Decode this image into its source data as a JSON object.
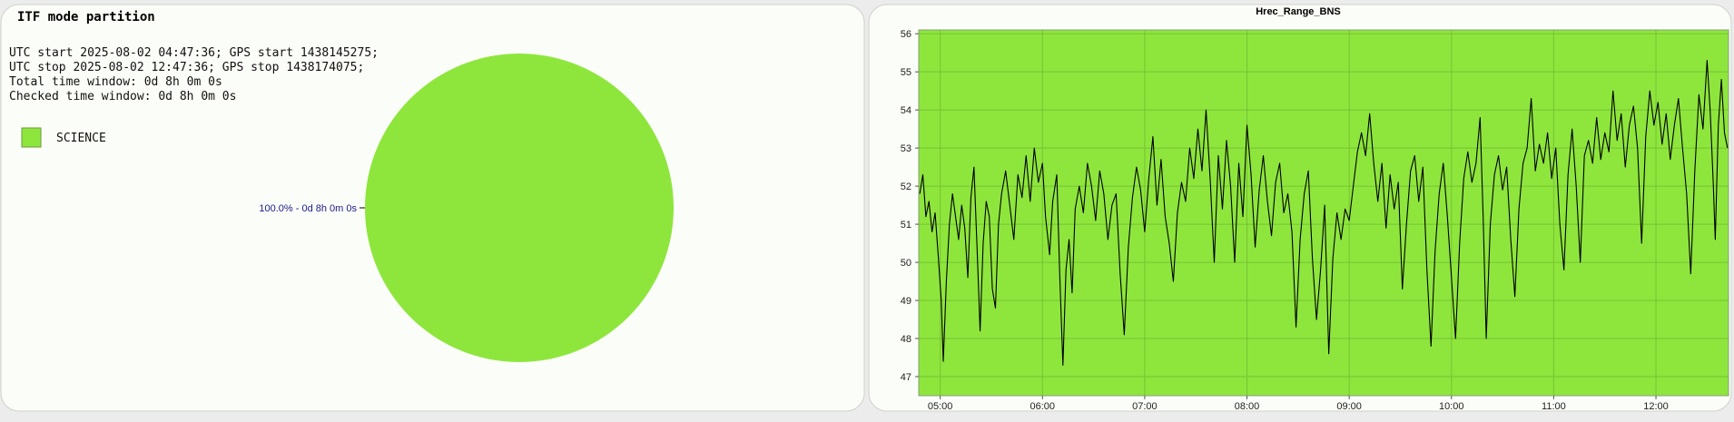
{
  "chart_data": [
    {
      "type": "pie",
      "title": "ITF mode partition",
      "annotations": [
        "UTC start 2025-08-02 04:47:36; GPS start 1438145275;",
        "UTC stop 2025-08-02 12:47:36; GPS stop 1438174075;",
        "Total time window: 0d 8h 0m 0s",
        "Checked time window: 0d 8h 0m 0s"
      ],
      "categories": [
        "SCIENCE"
      ],
      "values": [
        100
      ],
      "value_labels": [
        "100.0% - 0d 8h 0m 0s"
      ],
      "colors": [
        "#8ee63d"
      ]
    },
    {
      "type": "line",
      "title": "Hrec_Range_BNS",
      "color": "#000000",
      "background": "#8ee63d",
      "grid": true,
      "xlim": [
        4.79,
        12.71
      ],
      "ylim": [
        46.5,
        56.1
      ],
      "xticks": [
        {
          "value": 5,
          "label": "05:00"
        },
        {
          "value": 6,
          "label": "06:00"
        },
        {
          "value": 7,
          "label": "07:00"
        },
        {
          "value": 8,
          "label": "08:00"
        },
        {
          "value": 9,
          "label": "09:00"
        },
        {
          "value": 10,
          "label": "10:00"
        },
        {
          "value": 11,
          "label": "11:00"
        },
        {
          "value": 12,
          "label": "12:00"
        }
      ],
      "yticks": [
        47,
        48,
        49,
        50,
        51,
        52,
        53,
        54,
        55,
        56
      ],
      "x": [
        4.8,
        4.83,
        4.86,
        4.89,
        4.92,
        4.95,
        4.98,
        5.01,
        5.03,
        5.06,
        5.09,
        5.12,
        5.15,
        5.18,
        5.21,
        5.24,
        5.27,
        5.3,
        5.33,
        5.36,
        5.39,
        5.42,
        5.45,
        5.48,
        5.51,
        5.54,
        5.57,
        5.6,
        5.64,
        5.68,
        5.72,
        5.76,
        5.8,
        5.84,
        5.88,
        5.92,
        5.96,
        6.0,
        6.03,
        6.07,
        6.1,
        6.14,
        6.17,
        6.2,
        6.23,
        6.26,
        6.29,
        6.32,
        6.36,
        6.4,
        6.44,
        6.48,
        6.52,
        6.56,
        6.6,
        6.64,
        6.68,
        6.72,
        6.76,
        6.8,
        6.84,
        6.88,
        6.92,
        6.96,
        7.0,
        7.04,
        7.08,
        7.12,
        7.16,
        7.2,
        7.24,
        7.28,
        7.32,
        7.36,
        7.4,
        7.44,
        7.48,
        7.52,
        7.56,
        7.6,
        7.64,
        7.68,
        7.72,
        7.76,
        7.8,
        7.84,
        7.88,
        7.92,
        7.96,
        8.0,
        8.04,
        8.08,
        8.12,
        8.16,
        8.2,
        8.24,
        8.28,
        8.32,
        8.36,
        8.4,
        8.44,
        8.48,
        8.52,
        8.56,
        8.6,
        8.64,
        8.68,
        8.72,
        8.76,
        8.8,
        8.84,
        8.88,
        8.92,
        8.96,
        9.0,
        9.04,
        9.08,
        9.12,
        9.16,
        9.2,
        9.24,
        9.28,
        9.32,
        9.36,
        9.4,
        9.44,
        9.48,
        9.52,
        9.56,
        9.6,
        9.64,
        9.68,
        9.72,
        9.76,
        9.8,
        9.84,
        9.88,
        9.92,
        9.96,
        10.0,
        10.04,
        10.08,
        10.12,
        10.16,
        10.2,
        10.24,
        10.28,
        10.31,
        10.34,
        10.38,
        10.42,
        10.46,
        10.5,
        10.54,
        10.58,
        10.62,
        10.66,
        10.7,
        10.74,
        10.78,
        10.82,
        10.86,
        10.9,
        10.94,
        10.98,
        11.02,
        11.06,
        11.1,
        11.14,
        11.18,
        11.22,
        11.26,
        11.3,
        11.34,
        11.38,
        11.42,
        11.46,
        11.5,
        11.54,
        11.58,
        11.62,
        11.66,
        11.7,
        11.74,
        11.78,
        11.82,
        11.86,
        11.9,
        11.94,
        11.98,
        12.02,
        12.06,
        12.1,
        12.14,
        12.18,
        12.22,
        12.26,
        12.3,
        12.34,
        12.38,
        12.42,
        12.46,
        12.5,
        12.53,
        12.56,
        12.58,
        12.61,
        12.64,
        12.67,
        12.7
      ],
      "values": [
        51.8,
        52.3,
        51.2,
        51.6,
        50.8,
        51.3,
        50.2,
        49.0,
        47.4,
        49.5,
        51.0,
        51.8,
        51.2,
        50.6,
        51.5,
        50.9,
        49.6,
        51.7,
        52.5,
        50.4,
        48.2,
        50.5,
        51.6,
        51.2,
        49.3,
        48.8,
        51.0,
        51.8,
        52.4,
        51.5,
        50.6,
        52.3,
        51.7,
        52.8,
        51.6,
        53.0,
        52.1,
        52.6,
        51.2,
        50.2,
        51.6,
        52.3,
        49.6,
        47.3,
        49.8,
        50.6,
        49.2,
        51.4,
        52.0,
        51.3,
        52.6,
        52.0,
        51.1,
        52.4,
        51.8,
        50.6,
        51.5,
        51.8,
        49.7,
        48.1,
        50.4,
        51.7,
        52.5,
        51.9,
        50.8,
        52.2,
        53.3,
        51.5,
        52.7,
        51.2,
        50.5,
        49.5,
        51.3,
        52.1,
        51.6,
        53.0,
        52.2,
        53.5,
        52.4,
        54.0,
        52.2,
        50.0,
        52.8,
        51.4,
        53.2,
        52.0,
        50.0,
        52.6,
        51.2,
        53.6,
        52.3,
        50.4,
        51.9,
        52.8,
        51.6,
        50.7,
        52.1,
        52.6,
        51.3,
        51.8,
        50.8,
        48.3,
        50.6,
        51.8,
        52.4,
        50.1,
        48.5,
        49.8,
        51.5,
        47.6,
        50.1,
        51.3,
        50.6,
        51.4,
        51.1,
        52.0,
        52.9,
        53.4,
        52.8,
        53.9,
        52.6,
        51.6,
        52.6,
        50.9,
        52.3,
        51.4,
        52.1,
        49.3,
        51.0,
        52.4,
        52.8,
        51.6,
        52.5,
        49.8,
        47.8,
        50.3,
        51.8,
        52.6,
        51.2,
        49.6,
        48.0,
        50.5,
        52.2,
        52.9,
        52.1,
        52.6,
        53.8,
        51.2,
        48.0,
        51.0,
        52.3,
        52.8,
        51.9,
        52.5,
        50.6,
        49.1,
        51.4,
        52.6,
        53.0,
        54.3,
        52.4,
        53.1,
        52.6,
        53.4,
        52.2,
        53.0,
        51.0,
        49.8,
        52.3,
        53.5,
        52.0,
        50.0,
        52.8,
        53.2,
        52.6,
        53.8,
        52.7,
        53.4,
        52.9,
        54.5,
        53.2,
        53.9,
        52.5,
        53.6,
        54.1,
        53.0,
        50.5,
        53.3,
        54.5,
        53.6,
        54.2,
        53.1,
        53.9,
        52.7,
        53.6,
        54.3,
        53.0,
        51.8,
        49.7,
        52.4,
        54.4,
        53.5,
        55.3,
        54.0,
        52.1,
        50.6,
        53.6,
        54.8,
        53.4,
        53.0
      ]
    }
  ]
}
